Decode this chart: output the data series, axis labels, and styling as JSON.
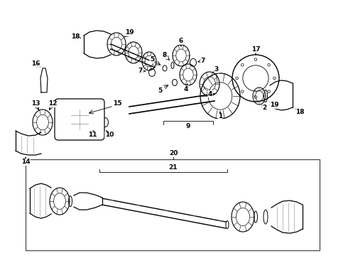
{
  "bg_color": "#ffffff",
  "line_color": "#000000",
  "gray_color": "#888888",
  "border_color": "#555555",
  "figsize": [
    4.9,
    3.6
  ],
  "dpi": 100
}
